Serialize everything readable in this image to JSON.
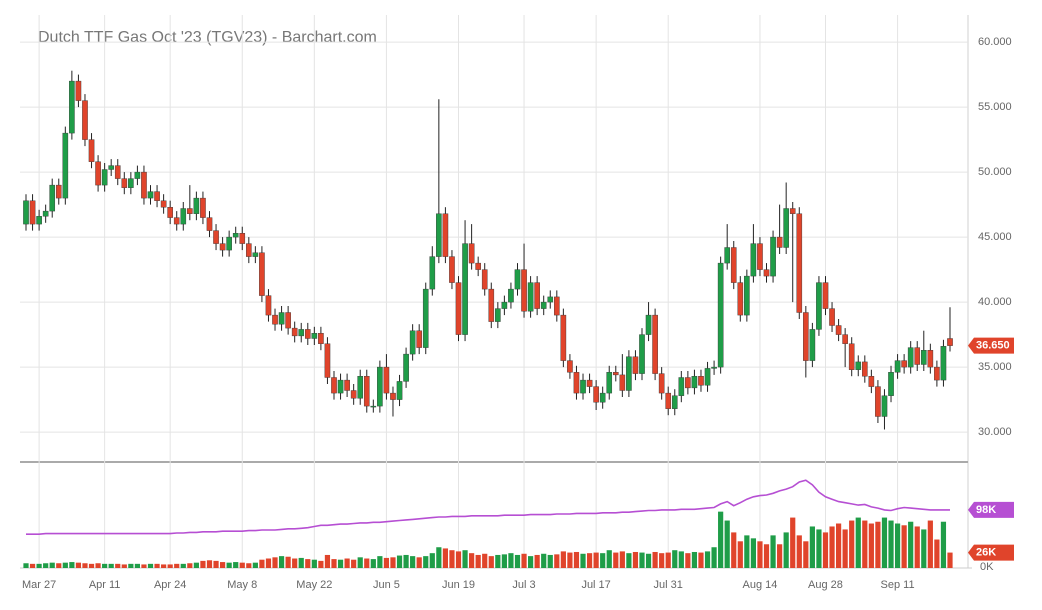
{
  "chart_data": {
    "type": "candlestick",
    "title": "Dutch TTF Gas Oct '23 (TGV23) - Barchart.com",
    "categories": [
      null,
      null,
      "Mar 27",
      null,
      null,
      null,
      null,
      null,
      null,
      null,
      null,
      null,
      "Apr 11",
      null,
      null,
      null,
      null,
      null,
      null,
      null,
      null,
      null,
      "Apr 24",
      null,
      null,
      null,
      null,
      null,
      null,
      null,
      null,
      null,
      null,
      "May 8",
      null,
      null,
      null,
      null,
      null,
      null,
      null,
      null,
      null,
      null,
      "May 22",
      null,
      null,
      null,
      null,
      null,
      null,
      null,
      null,
      null,
      null,
      "Jun 5",
      null,
      null,
      null,
      null,
      null,
      null,
      null,
      null,
      null,
      null,
      "Jun 19",
      null,
      null,
      null,
      null,
      null,
      null,
      null,
      null,
      null,
      "Jul 3",
      null,
      null,
      null,
      null,
      null,
      null,
      null,
      null,
      null,
      null,
      "Jul 17",
      null,
      null,
      null,
      null,
      null,
      null,
      null,
      null,
      null,
      null,
      "Jul 31",
      null,
      null,
      null,
      null,
      null,
      null,
      null,
      null,
      null,
      null,
      null,
      null,
      null,
      "Aug 14",
      null,
      null,
      null,
      null,
      null,
      null,
      null,
      null,
      null,
      "Aug 28",
      null,
      null,
      null,
      null,
      null,
      null,
      null,
      null,
      null,
      null,
      "Sep 11",
      null,
      null,
      null,
      null,
      null,
      null,
      null,
      null
    ],
    "open": [
      46.0,
      47.8,
      46.0,
      46.6,
      47.0,
      49.0,
      48.0,
      53.0,
      57.0,
      55.5,
      52.5,
      50.8,
      49.0,
      50.2,
      50.5,
      49.5,
      48.8,
      49.5,
      50.0,
      48.0,
      48.5,
      47.8,
      47.3,
      46.5,
      46.0,
      47.2,
      46.8,
      48.0,
      46.5,
      45.5,
      44.5,
      44.0,
      45.0,
      45.3,
      44.5,
      43.5,
      43.8,
      40.5,
      39.0,
      38.3,
      39.2,
      38.0,
      37.4,
      37.9,
      37.2,
      37.6,
      36.8,
      34.2,
      33.0,
      34.0,
      33.2,
      32.6,
      34.3,
      32.0,
      32.0,
      35.0,
      33.0,
      32.5,
      33.9,
      36.0,
      37.8,
      36.5,
      41.0,
      43.5,
      46.8,
      43.5,
      41.5,
      37.5,
      44.5,
      43.0,
      42.5,
      41.0,
      38.5,
      39.5,
      40.0,
      41.0,
      42.5,
      39.3,
      41.5,
      39.5,
      40.0,
      40.4,
      39.0,
      35.5,
      34.6,
      33.0,
      34.0,
      33.5,
      32.3,
      33.0,
      34.6,
      34.4,
      33.2,
      35.8,
      34.5,
      37.5,
      39.0,
      34.5,
      33.0,
      31.8,
      32.8,
      34.2,
      33.4,
      34.3,
      33.6,
      34.9,
      35.0,
      43.0,
      44.2,
      41.5,
      39.0,
      42.0,
      44.5,
      42.5,
      42.0,
      45.0,
      44.2,
      47.2,
      46.8,
      39.2,
      35.5,
      37.9,
      41.5,
      39.5,
      38.2,
      37.5,
      36.8,
      34.8,
      35.4,
      34.3,
      33.5,
      31.2,
      32.8,
      34.6,
      35.5,
      35.0,
      36.5,
      35.2,
      36.3,
      35.0,
      34.0,
      37.2
    ],
    "high": [
      48.3,
      48.3,
      47.1,
      47.5,
      49.5,
      49.5,
      53.5,
      57.8,
      57.5,
      56.0,
      53.0,
      51.3,
      50.7,
      51.0,
      51.0,
      50.0,
      50.0,
      50.5,
      50.5,
      49.0,
      49.0,
      48.3,
      47.8,
      47.0,
      47.7,
      49.0,
      48.5,
      48.5,
      47.0,
      46.0,
      45.0,
      45.5,
      45.8,
      45.8,
      45.0,
      44.3,
      44.3,
      41.0,
      39.5,
      39.7,
      39.7,
      38.5,
      38.4,
      38.4,
      38.1,
      38.1,
      37.3,
      34.7,
      34.5,
      34.5,
      33.7,
      34.8,
      34.8,
      32.5,
      35.5,
      36.0,
      33.5,
      34.4,
      36.5,
      38.3,
      38.3,
      41.5,
      44.3,
      55.6,
      47.3,
      44.0,
      42.0,
      46.3,
      46.0,
      43.5,
      43.0,
      41.5,
      40.0,
      40.5,
      41.5,
      43.0,
      44.5,
      42.0,
      42.0,
      40.5,
      40.9,
      40.9,
      39.5,
      36.0,
      35.1,
      34.5,
      34.5,
      34.0,
      33.5,
      35.1,
      35.1,
      36.0,
      36.3,
      36.3,
      38.0,
      40.0,
      39.5,
      35.0,
      33.5,
      33.3,
      34.7,
      34.7,
      34.8,
      34.8,
      35.4,
      35.5,
      43.5,
      46.0,
      44.7,
      42.0,
      42.5,
      46.0,
      45.0,
      43.0,
      45.5,
      47.5,
      49.2,
      47.7,
      47.3,
      39.7,
      38.4,
      42.0,
      42.0,
      40.0,
      38.7,
      38.0,
      37.3,
      35.9,
      35.9,
      34.8,
      34.0,
      33.3,
      35.1,
      36.0,
      36.0,
      37.0,
      37.0,
      37.8,
      36.8,
      35.5,
      37.1,
      39.6
    ],
    "low": [
      45.5,
      45.5,
      45.5,
      46.1,
      46.5,
      47.5,
      47.5,
      52.5,
      55.0,
      52.0,
      50.3,
      48.5,
      48.5,
      49.7,
      49.0,
      48.3,
      48.3,
      49.0,
      47.5,
      47.5,
      47.3,
      46.8,
      46.0,
      45.5,
      45.5,
      46.3,
      46.3,
      46.0,
      45.0,
      44.0,
      43.5,
      43.5,
      44.5,
      44.0,
      43.0,
      43.0,
      40.0,
      38.5,
      37.8,
      37.8,
      37.5,
      36.9,
      36.9,
      36.7,
      36.7,
      36.3,
      33.7,
      32.5,
      32.5,
      32.7,
      32.1,
      32.1,
      31.5,
      31.5,
      31.5,
      32.5,
      31.2,
      32.0,
      33.4,
      35.5,
      36.0,
      36.0,
      40.5,
      43.0,
      43.0,
      41.0,
      37.0,
      37.0,
      42.5,
      42.0,
      40.5,
      38.0,
      38.0,
      39.0,
      39.5,
      40.5,
      38.8,
      38.8,
      39.0,
      39.0,
      39.5,
      38.5,
      35.0,
      34.1,
      32.5,
      32.5,
      33.0,
      31.7,
      31.8,
      32.5,
      33.9,
      32.7,
      32.7,
      34.0,
      34.0,
      37.0,
      34.0,
      32.5,
      31.3,
      31.3,
      32.3,
      32.9,
      32.9,
      33.1,
      33.1,
      34.4,
      34.5,
      42.5,
      41.0,
      38.5,
      38.5,
      41.5,
      42.0,
      41.5,
      41.5,
      43.7,
      43.7,
      40.0,
      38.7,
      34.2,
      35.0,
      37.4,
      39.0,
      37.7,
      37.0,
      35.0,
      34.3,
      34.3,
      33.8,
      33.0,
      30.7,
      30.2,
      32.3,
      34.1,
      34.5,
      34.5,
      34.7,
      34.7,
      34.5,
      33.5,
      33.5,
      36.2
    ],
    "close": [
      47.8,
      46.0,
      46.6,
      47.0,
      49.0,
      48.0,
      53.0,
      57.0,
      55.5,
      52.5,
      50.8,
      49.0,
      50.2,
      50.5,
      49.5,
      48.8,
      49.5,
      50.0,
      48.0,
      48.5,
      47.8,
      47.3,
      46.5,
      46.0,
      47.2,
      46.8,
      48.0,
      46.5,
      45.5,
      44.5,
      44.0,
      45.0,
      45.3,
      44.5,
      43.5,
      43.8,
      40.5,
      39.0,
      38.3,
      39.2,
      38.0,
      37.4,
      37.9,
      37.2,
      37.6,
      36.8,
      34.2,
      33.0,
      34.0,
      33.2,
      32.6,
      34.3,
      32.0,
      32.0,
      35.0,
      33.0,
      32.5,
      33.9,
      36.0,
      37.8,
      36.5,
      41.0,
      43.5,
      46.8,
      43.5,
      41.5,
      37.5,
      44.5,
      43.0,
      42.5,
      41.0,
      38.5,
      39.5,
      40.0,
      41.0,
      42.5,
      39.3,
      41.5,
      39.5,
      40.0,
      40.4,
      39.0,
      35.5,
      34.6,
      33.0,
      34.0,
      33.5,
      32.3,
      33.0,
      34.6,
      34.4,
      33.2,
      35.8,
      34.5,
      37.5,
      39.0,
      34.5,
      33.0,
      31.8,
      32.8,
      34.2,
      33.4,
      34.3,
      33.6,
      34.9,
      35.0,
      43.0,
      44.2,
      41.5,
      39.0,
      42.0,
      44.5,
      42.5,
      42.0,
      45.0,
      44.2,
      47.2,
      46.8,
      39.2,
      35.5,
      37.9,
      41.5,
      39.5,
      38.2,
      37.5,
      36.8,
      34.8,
      35.4,
      34.3,
      33.5,
      31.2,
      32.8,
      34.6,
      35.5,
      35.0,
      36.5,
      35.2,
      36.3,
      35.0,
      34.0,
      36.6,
      36.65
    ],
    "volume": [
      8,
      7,
      7,
      8,
      9,
      8,
      9,
      10,
      9,
      8,
      7,
      8,
      7,
      7,
      7,
      6,
      7,
      7,
      6,
      7,
      7,
      6,
      6,
      7,
      7,
      8,
      9,
      12,
      13,
      12,
      10,
      9,
      10,
      9,
      8,
      9,
      14,
      16,
      18,
      20,
      19,
      16,
      17,
      15,
      14,
      12,
      22,
      15,
      14,
      16,
      14,
      18,
      16,
      15,
      20,
      17,
      18,
      21,
      22,
      20,
      18,
      20,
      25,
      35,
      33,
      30,
      28,
      30,
      25,
      22,
      24,
      20,
      22,
      23,
      25,
      22,
      24,
      20,
      22,
      24,
      22,
      23,
      28,
      26,
      27,
      24,
      25,
      26,
      25,
      30,
      26,
      28,
      25,
      27,
      26,
      24,
      27,
      25,
      26,
      30,
      28,
      25,
      27,
      26,
      28,
      35,
      95,
      80,
      60,
      45,
      55,
      50,
      45,
      40,
      55,
      40,
      60,
      85,
      55,
      45,
      70,
      65,
      60,
      70,
      75,
      65,
      80,
      85,
      80,
      75,
      78,
      85,
      80,
      75,
      72,
      78,
      70,
      65,
      80,
      48,
      78,
      26
    ],
    "open_interest": [
      57,
      57,
      57,
      58,
      58,
      58,
      58,
      58,
      58,
      58,
      58,
      58,
      58,
      58,
      58,
      58,
      58,
      58,
      58,
      58,
      58,
      58,
      58,
      59,
      59,
      60,
      60,
      61,
      61,
      61,
      62,
      62,
      62,
      62,
      63,
      63,
      64,
      64,
      64,
      65,
      66,
      66,
      67,
      68,
      70,
      72,
      72,
      73,
      74,
      74,
      75,
      76,
      76,
      77,
      77,
      78,
      79,
      80,
      81,
      82,
      83,
      84,
      85,
      86,
      86,
      87,
      87,
      87,
      88,
      88,
      88,
      88,
      88,
      89,
      89,
      89,
      89,
      90,
      90,
      90,
      90,
      91,
      91,
      91,
      92,
      92,
      92,
      92,
      93,
      93,
      93,
      94,
      94,
      95,
      96,
      97,
      97,
      98,
      98,
      98,
      99,
      99,
      99,
      100,
      101,
      102,
      108,
      112,
      105,
      110,
      116,
      120,
      122,
      123,
      126,
      130,
      133,
      137,
      145,
      148,
      140,
      128,
      120,
      116,
      112,
      110,
      108,
      106,
      107,
      103,
      101,
      98,
      97,
      100,
      102,
      101,
      100,
      99,
      98,
      98,
      98,
      98
    ],
    "up_color": "#1f9d48",
    "down_color": "#e0442b",
    "oi_color": "#b64fd3",
    "ylim": [
      27.7,
      61.7
    ],
    "yticks": [
      {
        "value": 30,
        "label": "30.000"
      },
      {
        "value": 35,
        "label": "35.000"
      },
      {
        "value": 40,
        "label": "40.000"
      },
      {
        "value": 45,
        "label": "45.000"
      },
      {
        "value": 50,
        "label": "50.000"
      },
      {
        "value": 55,
        "label": "55.000"
      },
      {
        "value": 60,
        "label": "60.000"
      }
    ],
    "y2lim": [
      0,
      177
    ],
    "y2ticks": [
      {
        "value": 0,
        "label": "0K"
      }
    ],
    "last_price": {
      "value": 36.65,
      "label": "36.650"
    },
    "oi_label": {
      "value": 98,
      "label": "98K"
    },
    "volume_label": {
      "value": 26,
      "label": "26K"
    },
    "grid": true
  }
}
